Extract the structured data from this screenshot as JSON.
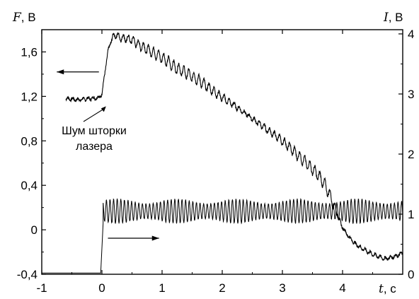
{
  "chart_data": {
    "type": "line",
    "title": "",
    "xlabel": {
      "symbol": "t",
      "unit": ", с"
    },
    "ylabel_left": {
      "symbol": "F",
      "unit": ", В"
    },
    "ylabel_right": {
      "symbol": "I",
      "unit": ", В"
    },
    "xlim": [
      -1,
      5
    ],
    "ylim_left": [
      -0.4,
      1.8
    ],
    "ylim_right": [
      0,
      4.07
    ],
    "x_ticks": [
      "-1",
      "0",
      "1",
      "2",
      "3",
      "4"
    ],
    "x_tick_values": [
      -1,
      0,
      1,
      2,
      3,
      4
    ],
    "y_ticks_left": [
      "-0,4",
      "0",
      "0,4",
      "0,8",
      "1,2",
      "1,6"
    ],
    "y_tick_values_left": [
      -0.4,
      0,
      0.4,
      0.8,
      1.2,
      1.6
    ],
    "y_ticks_right": [
      "0",
      "1",
      "2",
      "3",
      "4"
    ],
    "y_tick_values_right": [
      0,
      1,
      2,
      3,
      4
    ],
    "grid": false,
    "annotation": {
      "lines": [
        "Шум шторки",
        "лазера"
      ],
      "points_to": [
        0.08,
        1.13
      ]
    },
    "arrows": [
      {
        "direction": "left",
        "axis": "left",
        "from": [
          -0.05,
          1.42
        ],
        "to": [
          -0.75,
          1.42
        ]
      },
      {
        "direction": "right",
        "axis": "right",
        "from": [
          0.1,
          0.6
        ],
        "to": [
          0.95,
          0.6
        ]
      }
    ],
    "series": [
      {
        "axis": "left",
        "x": [
          -0.6,
          -0.4,
          -0.2,
          -0.05,
          0.0,
          0.05,
          0.1,
          0.15,
          0.2,
          0.25,
          0.3,
          0.4,
          0.5,
          0.6,
          0.8,
          1.0,
          1.2,
          1.4,
          1.6,
          1.8,
          2.0,
          2.2,
          2.4,
          2.6,
          2.8,
          3.0,
          3.2,
          3.4,
          3.6,
          3.7,
          3.8,
          3.9,
          4.0,
          4.1,
          4.2,
          4.3,
          4.4,
          4.5,
          4.6,
          4.7,
          4.8,
          4.9,
          5.0
        ],
        "y": [
          1.18,
          1.17,
          1.18,
          1.19,
          1.22,
          1.42,
          1.6,
          1.7,
          1.75,
          1.75,
          1.73,
          1.72,
          1.71,
          1.67,
          1.61,
          1.55,
          1.47,
          1.41,
          1.35,
          1.27,
          1.19,
          1.12,
          1.04,
          0.96,
          0.88,
          0.8,
          0.7,
          0.6,
          0.49,
          0.41,
          0.3,
          0.15,
          0.02,
          -0.06,
          -0.12,
          -0.16,
          -0.19,
          -0.22,
          -0.24,
          -0.26,
          -0.25,
          -0.23,
          -0.21
        ]
      },
      {
        "axis": "right",
        "x": [
          -1.0,
          -0.5,
          -0.02,
          0.0,
          0.02,
          5.0
        ],
        "y": [
          0.0,
          0.0,
          0.02,
          0.02,
          1.05,
          1.05
        ],
        "modulation_amplitude": 0.2
      }
    ]
  }
}
